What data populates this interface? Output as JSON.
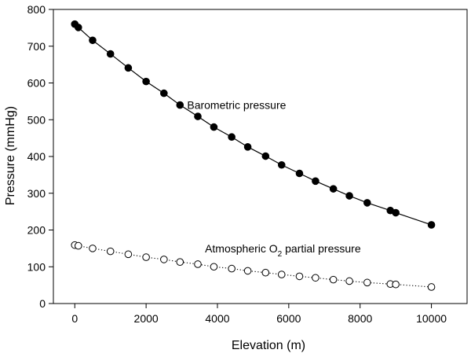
{
  "chart_data": {
    "type": "scatter",
    "title": "",
    "xlabel": "Elevation (m)",
    "ylabel": "Pressure (mmHg)",
    "xlim": [
      -600,
      11000
    ],
    "ylim": [
      0,
      800
    ],
    "xticks": [
      0,
      2000,
      4000,
      6000,
      8000,
      10000
    ],
    "yticks": [
      0,
      100,
      200,
      300,
      400,
      500,
      600,
      700,
      800
    ],
    "grid": false,
    "legend": "none",
    "series": [
      {
        "name": "Barometric pressure",
        "marker": "filled-circle",
        "line": "solid",
        "color": "#000000",
        "x": [
          0,
          100,
          500,
          1000,
          1500,
          2000,
          2500,
          2950,
          3450,
          3900,
          4400,
          4850,
          5350,
          5800,
          6300,
          6750,
          7250,
          7700,
          8200,
          8848,
          9000,
          10000
        ],
        "y": [
          760,
          751,
          716,
          679,
          641,
          604,
          572,
          540,
          509,
          480,
          453,
          426,
          401,
          377,
          354,
          333,
          312,
          293,
          274,
          253,
          247,
          214
        ]
      },
      {
        "name": "Atmospheric O2 partial pressure",
        "marker": "open-circle",
        "line": "dotted",
        "color": "#000000",
        "x": [
          0,
          100,
          500,
          1000,
          1500,
          2000,
          2500,
          2950,
          3450,
          3900,
          4400,
          4850,
          5350,
          5800,
          6300,
          6750,
          7250,
          7700,
          8200,
          8848,
          9000,
          10000
        ],
        "y": [
          159,
          157,
          150,
          142,
          134,
          126,
          120,
          113,
          107,
          100,
          95,
          89,
          84,
          79,
          74,
          70,
          65,
          61,
          57,
          53,
          52,
          45
        ]
      }
    ],
    "annotations": [
      {
        "text": "Barometric pressure",
        "at": [
          3150,
          540
        ]
      },
      {
        "text_parts": [
          "Atmospheric O",
          "2",
          " partial pressure"
        ],
        "at": [
          3650,
          150
        ]
      }
    ]
  }
}
